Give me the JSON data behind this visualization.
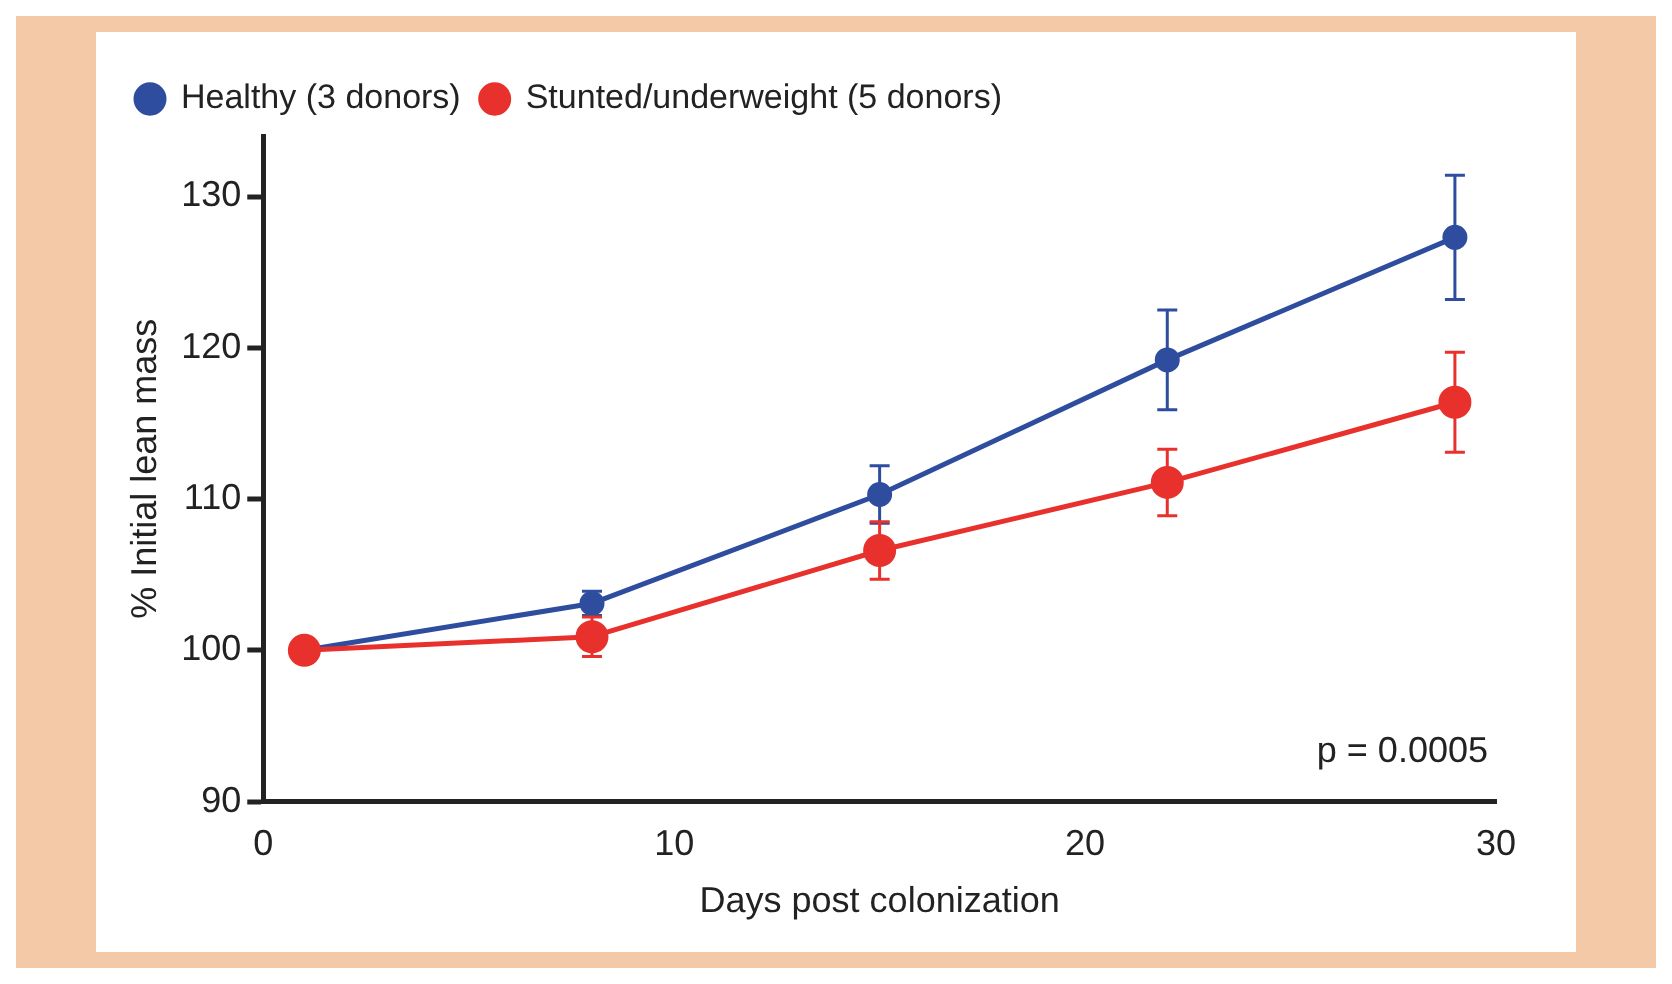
{
  "chart_data": {
    "type": "line",
    "xlabel": "Days post colonization",
    "ylabel": "% Initial lean mass",
    "x": [
      1,
      8,
      15,
      22,
      29
    ],
    "series": [
      {
        "name": "Healthy (3 donors)",
        "color": "#2f4d9e",
        "values": [
          100,
          103.1,
          110.3,
          119.2,
          127.3
        ],
        "errors": [
          null,
          0.8,
          1.9,
          3.3,
          4.1
        ]
      },
      {
        "name": "Stunted/underweight (5 donors)",
        "color": "#e8312c",
        "values": [
          100,
          100.9,
          106.6,
          111.1,
          116.4
        ],
        "errors": [
          null,
          1.3,
          1.9,
          2.2,
          3.3
        ]
      }
    ],
    "xlim": [
      0,
      30
    ],
    "xticks": [
      0,
      10,
      20,
      30
    ],
    "ylim": [
      90,
      134
    ],
    "yticks": [
      90,
      100,
      110,
      120,
      130
    ],
    "annotations": [
      "p = 0.0005"
    ],
    "grid": false,
    "legend": "top left",
    "marker": "circle",
    "line_style": "solid"
  }
}
